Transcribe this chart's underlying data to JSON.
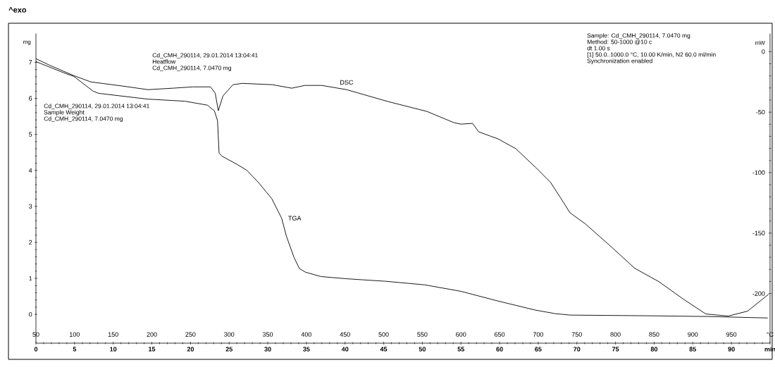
{
  "chart_data": {
    "type": "line",
    "annotations": [
      "^exo",
      "Cd_CMH_290114, 29.01.2014 13:04:41",
      "Heatflow",
      "Cd_CMH_290114, 7.0470 mg",
      "Cd_CMH_290114, 29.01.2014 13:04:41",
      "Sample Weight",
      "Cd_CMH_290114, 7.0470 mg",
      "Sample: Cd_CMH_290114, 7.0470 mg",
      "Method: 50-1000 @10 c",
      "dt 1.00 s",
      "[1] 50.0..1000.0 °C, 10.00 K/min, N2 60.0 ml/min",
      "Synchronization enabled"
    ],
    "ylabel": "mg",
    "y2label": "mW",
    "xlim": [
      0,
      95
    ],
    "xticks": [
      0,
      5,
      10,
      15,
      20,
      25,
      30,
      35,
      40,
      45,
      50,
      55,
      60,
      65,
      70,
      75,
      80,
      85,
      90,
      {
        "value": 95,
        "label": "min"
      }
    ],
    "x2lim": [
      50,
      1000
    ],
    "x2ticks": [
      50,
      100,
      150,
      200,
      250,
      300,
      350,
      400,
      450,
      500,
      550,
      600,
      650,
      700,
      750,
      800,
      850,
      900,
      950,
      {
        "value": 1000,
        "label": "°C"
      }
    ],
    "ylim": [
      -0.8,
      7.8
    ],
    "yticks": [
      0,
      1,
      2,
      3,
      4,
      5,
      6,
      7
    ],
    "y2lim": [
      -241,
      15
    ],
    "y2ticks": [
      0,
      -50,
      -100,
      -150,
      -200
    ],
    "series": [
      {
        "name": "TGA",
        "color": "#000000",
        "x": [
          0,
          3.6,
          4.9,
          7.4,
          8.1,
          14.4,
          19.3,
          22.2,
          23.1,
          23.5,
          23.7,
          24.1,
          26.0,
          27.3,
          28.8,
          30.5,
          31.8,
          32.4,
          33.4,
          34.1,
          34.9,
          36.9,
          40.1,
          45.2,
          50.3,
          55.0,
          59.8,
          64.6,
          67.2,
          69.1,
          79.6,
          87.0,
          94.7
        ],
        "values": [
          7.02,
          6.71,
          6.61,
          6.2,
          6.14,
          5.98,
          5.92,
          5.81,
          5.65,
          5.38,
          4.48,
          4.39,
          4.17,
          4.0,
          3.66,
          3.22,
          2.67,
          2.18,
          1.58,
          1.27,
          1.17,
          1.05,
          0.99,
          0.92,
          0.82,
          0.64,
          0.37,
          0.12,
          0.02,
          -0.02,
          -0.04,
          -0.06,
          -0.1
        ]
      },
      {
        "name": "DSC",
        "color": "#000000",
        "axis": "y2",
        "x": [
          0,
          1.7,
          4.9,
          7.1,
          11.3,
          14.5,
          17.7,
          20.3,
          22.6,
          23.2,
          23.6,
          24.2,
          25.5,
          26.7,
          30.6,
          33.1,
          34.8,
          37.0,
          40.2,
          45.6,
          50.6,
          54.1,
          55.0,
          56.5,
          57.3,
          59.8,
          62.1,
          64.7,
          66.6,
          67.9,
          69.1,
          71.1,
          74.2,
          77.5,
          80.6,
          83.8,
          86.7,
          89.6,
          92.1,
          94.8
        ],
        "values": [
          -5.8,
          -11.0,
          -19.8,
          -25.0,
          -28.5,
          -31.4,
          -30.2,
          -29.1,
          -29.1,
          -34.3,
          -48.8,
          -36.6,
          -27.3,
          -26.2,
          -27.3,
          -30.2,
          -27.9,
          -27.9,
          -31.4,
          -41.3,
          -49.4,
          -58.7,
          -59.9,
          -59.3,
          -66.3,
          -72.1,
          -80.2,
          -95.9,
          -108.1,
          -120.9,
          -133.1,
          -142.4,
          -159.9,
          -179.1,
          -190.1,
          -204.7,
          -216.9,
          -218.6,
          -214.5,
          -200.6
        ]
      }
    ]
  }
}
